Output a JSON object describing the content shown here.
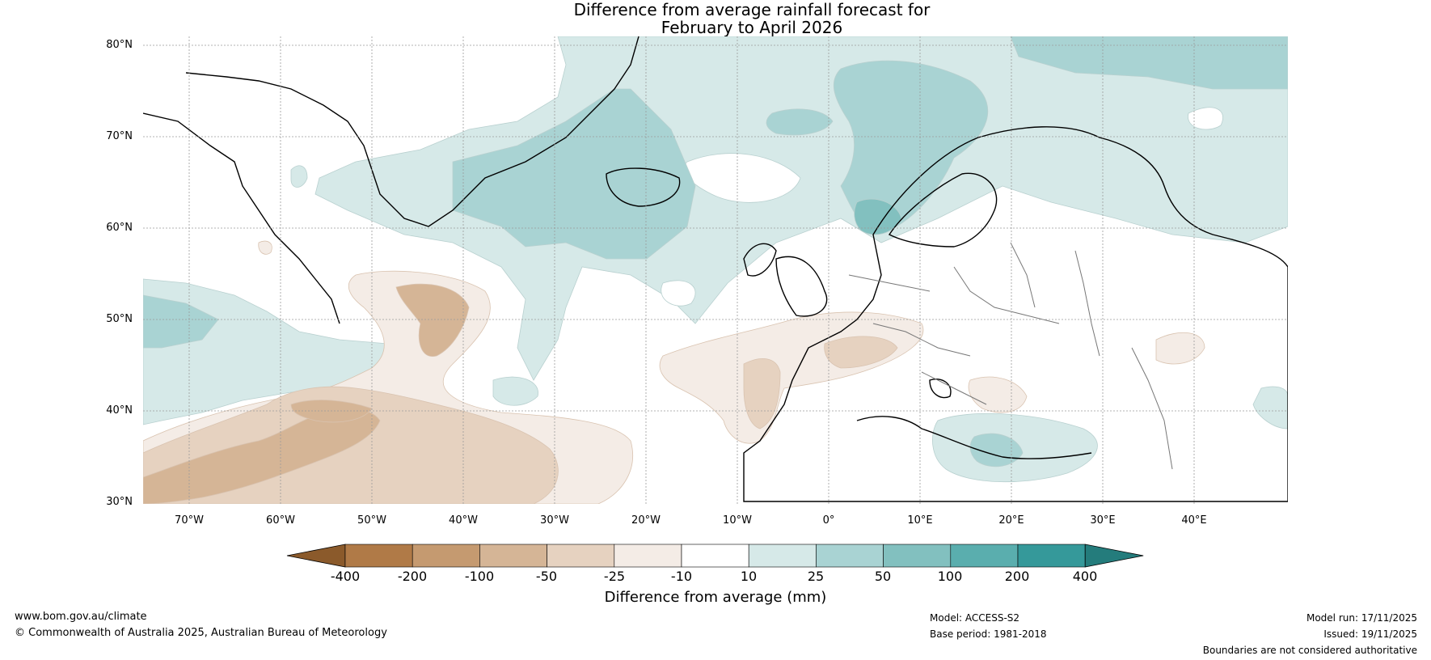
{
  "title": {
    "line1": "Difference from average rainfall forecast for",
    "line2": "February to April 2026"
  },
  "map": {
    "lat_labels": [
      "80°N",
      "70°N",
      "60°N",
      "50°N",
      "40°N",
      "30°N"
    ],
    "lon_labels": [
      "70°W",
      "60°W",
      "50°W",
      "40°W",
      "30°W",
      "20°W",
      "10°W",
      "0°",
      "10°E",
      "20°E",
      "30°E",
      "40°E"
    ]
  },
  "colorbar": {
    "ticks": [
      "-400",
      "-200",
      "-100",
      "-50",
      "-25",
      "-10",
      "10",
      "25",
      "50",
      "100",
      "200",
      "400"
    ],
    "colors": [
      "#8b5a2b",
      "#b07a47",
      "#c59a70",
      "#d5b596",
      "#e6d2c0",
      "#f4ece6",
      "#ffffff",
      "#d6e9e8",
      "#a9d3d3",
      "#82c0bf",
      "#5aaeae",
      "#35999a",
      "#247c7c"
    ],
    "label": "Difference from average (mm)"
  },
  "footer": {
    "url": "www.bom.gov.au/climate",
    "copyright": "© Commonwealth of Australia 2025, Australian Bureau of Meteorology",
    "model": "Model: ACCESS-S2",
    "base_period": "Base period: 1981-2018",
    "model_run": "Model run: 17/11/2025",
    "issued": "Issued: 19/11/2025",
    "disclaimer": "Boundaries are not considered authoritative"
  }
}
